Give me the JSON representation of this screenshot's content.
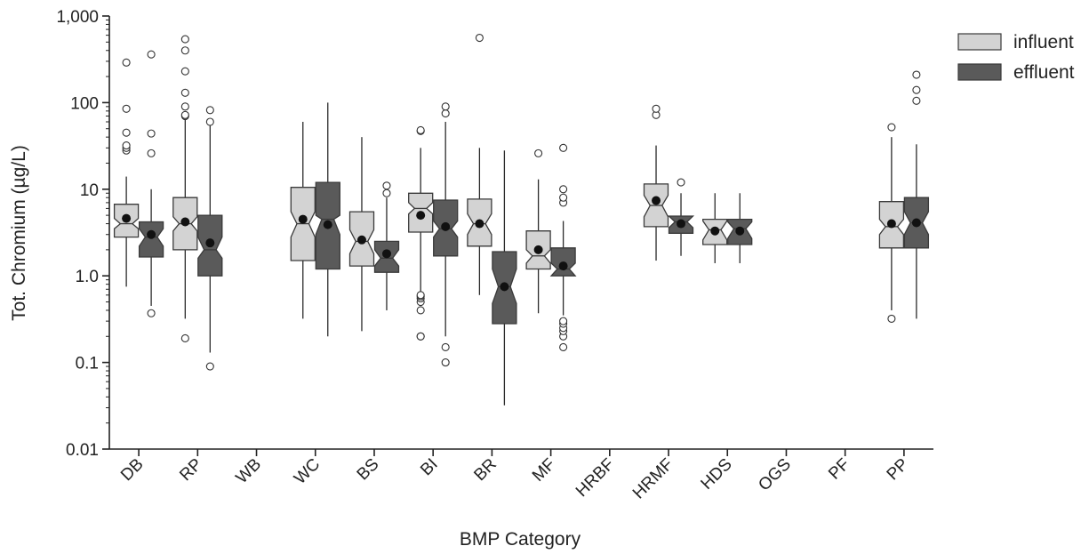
{
  "chart_data": {
    "type": "boxplot",
    "xlabel": "BMP Category",
    "ylabel": "Tot. Chromium (µg/L)",
    "y_scale": "log",
    "ylim": [
      0.01,
      1000
    ],
    "y_ticks": [
      {
        "value": 0.01,
        "label": "0.01"
      },
      {
        "value": 0.1,
        "label": "0.1"
      },
      {
        "value": 1,
        "label": "1.0"
      },
      {
        "value": 10,
        "label": "10"
      },
      {
        "value": 100,
        "label": "100"
      },
      {
        "value": 1000,
        "label": "1,000"
      }
    ],
    "categories": [
      "DB",
      "RP",
      "WB",
      "WC",
      "BS",
      "BI",
      "BR",
      "MF",
      "HRBF",
      "HRMF",
      "HDS",
      "OGS",
      "PF",
      "PP"
    ],
    "legend_position": "top-right",
    "notched": true,
    "series": [
      {
        "name": "influent",
        "color": "#d3d3d3",
        "boxes": [
          {
            "category": "DB",
            "whislo": 0.75,
            "q1": 2.8,
            "med": 4.0,
            "q3": 6.7,
            "whishi": 14,
            "mean": 4.6,
            "notch_lo": 3.5,
            "notch_hi": 4.6,
            "fliers": [
              28,
              30,
              32,
              45,
              85,
              290
            ]
          },
          {
            "category": "RP",
            "whislo": 0.32,
            "q1": 2.0,
            "med": 4.0,
            "q3": 8.0,
            "whishi": 65,
            "mean": 4.2,
            "notch_lo": 3.3,
            "notch_hi": 4.8,
            "fliers": [
              0.19,
              70,
              72,
              90,
              130,
              230,
              400,
              540
            ]
          },
          {
            "category": "WC",
            "whislo": 0.32,
            "q1": 1.5,
            "med": 4.0,
            "q3": 10.5,
            "whishi": 60,
            "mean": 4.5,
            "notch_lo": 2.8,
            "notch_hi": 5.5,
            "fliers": []
          },
          {
            "category": "BS",
            "whislo": 0.23,
            "q1": 1.3,
            "med": 2.5,
            "q3": 5.5,
            "whishi": 40,
            "mean": 2.6,
            "notch_lo": 1.8,
            "notch_hi": 3.4,
            "fliers": []
          },
          {
            "category": "BI",
            "whislo": 0.65,
            "q1": 3.2,
            "med": 6.0,
            "q3": 9.0,
            "whishi": 30,
            "mean": 5.0,
            "notch_lo": 5.2,
            "notch_hi": 7.0,
            "fliers": [
              0.2,
              0.2,
              0.4,
              0.5,
              0.55,
              0.58,
              0.6,
              47,
              48
            ]
          },
          {
            "category": "BR",
            "whislo": 0.6,
            "q1": 2.2,
            "med": 4.0,
            "q3": 7.7,
            "whishi": 30,
            "mean": 4.0,
            "notch_lo": 3.0,
            "notch_hi": 5.2,
            "fliers": [
              560
            ]
          },
          {
            "category": "MF",
            "whislo": 0.37,
            "q1": 1.2,
            "med": 1.7,
            "q3": 3.3,
            "whishi": 13,
            "mean": 2.0,
            "notch_lo": 1.4,
            "notch_hi": 2.0,
            "fliers": [
              26
            ]
          },
          {
            "category": "HRMF",
            "whislo": 1.5,
            "q1": 3.7,
            "med": 6.5,
            "q3": 11.5,
            "whishi": 32,
            "mean": 7.4,
            "notch_lo": 4.8,
            "notch_hi": 8.5,
            "fliers": [
              72,
              85
            ]
          },
          {
            "category": "HDS",
            "whislo": 1.4,
            "q1": 2.3,
            "med": 3.4,
            "q3": 4.5,
            "whishi": 9.0,
            "mean": 3.3,
            "notch_lo": 2.6,
            "notch_hi": 4.3,
            "fliers": []
          },
          {
            "category": "PP",
            "whislo": 0.4,
            "q1": 2.1,
            "med": 3.7,
            "q3": 7.2,
            "whishi": 40,
            "mean": 4.0,
            "notch_lo": 3.0,
            "notch_hi": 4.5,
            "fliers": [
              0.32,
              52
            ]
          }
        ]
      },
      {
        "name": "effluent",
        "color": "#5a5a5a",
        "boxes": [
          {
            "category": "DB",
            "whislo": 0.45,
            "q1": 1.65,
            "med": 2.8,
            "q3": 4.2,
            "whishi": 10,
            "mean": 3.0,
            "notch_lo": 2.2,
            "notch_hi": 3.5,
            "fliers": [
              0.37,
              26,
              44,
              360
            ]
          },
          {
            "category": "RP",
            "whislo": 0.13,
            "q1": 1.0,
            "med": 2.0,
            "q3": 5.0,
            "whishi": 60,
            "mean": 2.4,
            "notch_lo": 1.6,
            "notch_hi": 2.8,
            "fliers": [
              0.09,
              60,
              82
            ]
          },
          {
            "category": "WC",
            "whislo": 0.2,
            "q1": 1.2,
            "med": 4.5,
            "q3": 12,
            "whishi": 100,
            "mean": 3.9,
            "notch_lo": 3.0,
            "notch_hi": 5.0,
            "fliers": []
          },
          {
            "category": "BS",
            "whislo": 0.4,
            "q1": 1.1,
            "med": 1.6,
            "q3": 2.5,
            "whishi": 8.0,
            "mean": 1.8,
            "notch_lo": 1.3,
            "notch_hi": 2.0,
            "fliers": [
              9,
              11
            ]
          },
          {
            "category": "BI",
            "whislo": 0.2,
            "q1": 1.7,
            "med": 3.5,
            "q3": 7.5,
            "whishi": 60,
            "mean": 3.7,
            "notch_lo": 2.8,
            "notch_hi": 4.3,
            "fliers": [
              0.1,
              0.15,
              75,
              90
            ]
          },
          {
            "category": "BR",
            "whislo": 0.032,
            "q1": 0.28,
            "med": 0.75,
            "q3": 1.9,
            "whishi": 28,
            "mean": 0.75,
            "notch_lo": 0.48,
            "notch_hi": 1.2,
            "fliers": []
          },
          {
            "category": "MF",
            "whislo": 0.35,
            "q1": 1.0,
            "med": 1.2,
            "q3": 2.1,
            "whishi": 4.3,
            "mean": 1.3,
            "notch_lo": 1.0,
            "notch_hi": 1.4,
            "fliers": [
              0.15,
              0.2,
              0.23,
              0.25,
              0.28,
              0.3,
              7,
              8,
              10,
              30
            ]
          },
          {
            "category": "HRMF",
            "whislo": 1.7,
            "q1": 3.1,
            "med": 4.2,
            "q3": 4.9,
            "whishi": 9.0,
            "mean": 4.0,
            "notch_lo": 3.6,
            "notch_hi": 4.9,
            "fliers": [
              12
            ]
          },
          {
            "category": "HDS",
            "whislo": 1.4,
            "q1": 2.3,
            "med": 3.5,
            "q3": 4.5,
            "whishi": 9.0,
            "mean": 3.3,
            "notch_lo": 2.7,
            "notch_hi": 4.2,
            "fliers": []
          },
          {
            "category": "PP",
            "whislo": 0.32,
            "q1": 2.1,
            "med": 4.1,
            "q3": 8.0,
            "whishi": 33,
            "mean": 4.1,
            "notch_lo": 3.0,
            "notch_hi": 5.5,
            "fliers": [
              105,
              140,
              210
            ]
          }
        ]
      }
    ]
  }
}
